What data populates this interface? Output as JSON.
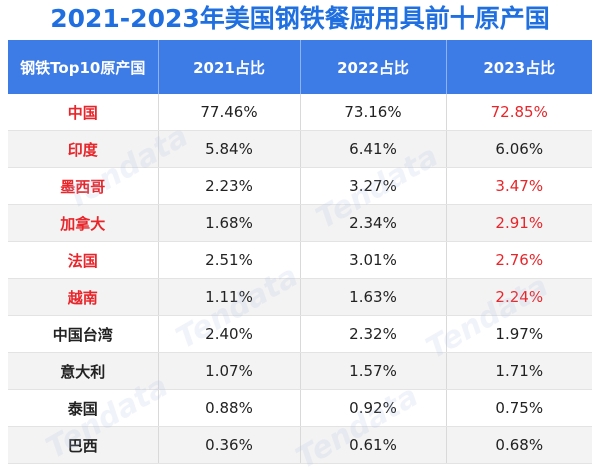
{
  "chart_data": {
    "type": "table",
    "title": "2021-2023年美国钢铁餐厨用具前十原产国",
    "columns": [
      "钢铁Top10原产国",
      "2021占比",
      "2022占比",
      "2023占比"
    ],
    "rows": [
      {
        "country": "中国",
        "v2021": "77.46%",
        "v2022": "73.16%",
        "v2023": "72.85%",
        "country_red": true,
        "v2023_red": true
      },
      {
        "country": "印度",
        "v2021": "5.84%",
        "v2022": "6.41%",
        "v2023": "6.06%",
        "country_red": true,
        "v2023_red": false
      },
      {
        "country": "墨西哥",
        "v2021": "2.23%",
        "v2022": "3.27%",
        "v2023": "3.47%",
        "country_red": true,
        "v2023_red": true
      },
      {
        "country": "加拿大",
        "v2021": "1.68%",
        "v2022": "2.34%",
        "v2023": "2.91%",
        "country_red": true,
        "v2023_red": true
      },
      {
        "country": "法国",
        "v2021": "2.51%",
        "v2022": "3.01%",
        "v2023": "2.76%",
        "country_red": true,
        "v2023_red": true
      },
      {
        "country": "越南",
        "v2021": "1.11%",
        "v2022": "1.63%",
        "v2023": "2.24%",
        "country_red": true,
        "v2023_red": true
      },
      {
        "country": "中国台湾",
        "v2021": "2.40%",
        "v2022": "2.32%",
        "v2023": "1.97%",
        "country_red": false,
        "v2023_red": false
      },
      {
        "country": "意大利",
        "v2021": "1.07%",
        "v2022": "1.57%",
        "v2023": "1.71%",
        "country_red": false,
        "v2023_red": false
      },
      {
        "country": "泰国",
        "v2021": "0.88%",
        "v2022": "0.92%",
        "v2023": "0.75%",
        "country_red": false,
        "v2023_red": false
      },
      {
        "country": "巴西",
        "v2021": "0.36%",
        "v2022": "0.61%",
        "v2023": "0.68%",
        "country_red": false,
        "v2023_red": false
      }
    ],
    "highlight_color": "#e8252a",
    "header_color": "#3d7be6",
    "title_color": "#1f6fe0"
  },
  "watermark": "Tendata"
}
